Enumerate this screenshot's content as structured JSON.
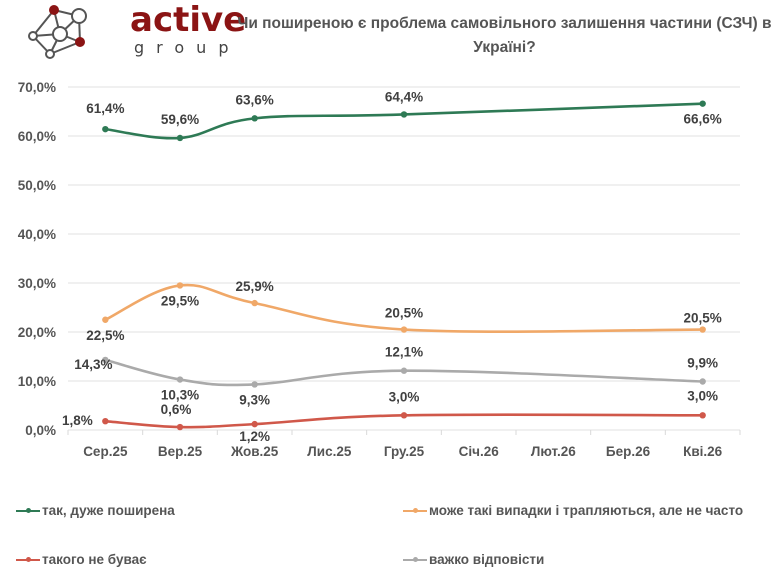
{
  "logo": {
    "word": "active",
    "sub": "group"
  },
  "chart_data": {
    "type": "line",
    "title": "Чи поширеною є проблема самовільного залишення частини (СЗЧ) в Україні?",
    "xlabel": "",
    "ylabel": "",
    "ylim": [
      0,
      70
    ],
    "yticks": [
      "0,0%",
      "10,0%",
      "20,0%",
      "30,0%",
      "40,0%",
      "50,0%",
      "60,0%",
      "70,0%"
    ],
    "ytick_values": [
      0,
      10,
      20,
      30,
      40,
      50,
      60,
      70
    ],
    "grid": true,
    "legend_position": "bottom",
    "categories": [
      "Сер.25",
      "Вер.25",
      "Жов.25",
      "Лис.25",
      "Гру.25",
      "Січ.26",
      "Лют.26",
      "Бер.26",
      "Кві.26"
    ],
    "series": [
      {
        "name": "так, дуже поширена",
        "color": "#2e7a55",
        "values": [
          61.4,
          59.6,
          63.6,
          null,
          64.4,
          null,
          null,
          null,
          66.6
        ],
        "labels": [
          "61,4%",
          "59,6%",
          "63,6%",
          null,
          "64,4%",
          null,
          null,
          null,
          "66,6%"
        ]
      },
      {
        "name": "може такі випадки і трапляються, але не часто",
        "color": "#f0a868",
        "values": [
          22.5,
          29.5,
          25.9,
          null,
          20.5,
          null,
          null,
          null,
          20.5
        ],
        "labels": [
          "22,5%",
          "29,5%",
          "25,9%",
          null,
          "20,5%",
          null,
          null,
          null,
          "20,5%"
        ]
      },
      {
        "name": "такого не буває",
        "color": "#d0584a",
        "values": [
          1.8,
          0.6,
          1.2,
          null,
          3.0,
          null,
          null,
          null,
          3.0
        ],
        "labels": [
          "1,8%",
          "0,6%",
          "1,2%",
          null,
          "3,0%",
          null,
          null,
          null,
          "3,0%"
        ]
      },
      {
        "name": "важко відповісти",
        "color": "#aaaaaa",
        "values": [
          14.3,
          10.3,
          9.3,
          null,
          12.1,
          null,
          null,
          null,
          9.9
        ],
        "labels": [
          "14,3%",
          "10,3%",
          "9,3%",
          null,
          "12,1%",
          null,
          null,
          null,
          "9,9%"
        ]
      }
    ]
  }
}
